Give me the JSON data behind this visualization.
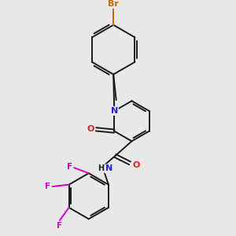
{
  "background_color": "#e8e8e8",
  "bond_color": "#1a1a1a",
  "atom_colors": {
    "N": "#2222dd",
    "O": "#dd2222",
    "F": "#cc00cc",
    "Br": "#cc6600"
  },
  "figsize": [
    3.0,
    3.0
  ],
  "dpi": 100,
  "lw": 1.4,
  "fs": 7.5
}
